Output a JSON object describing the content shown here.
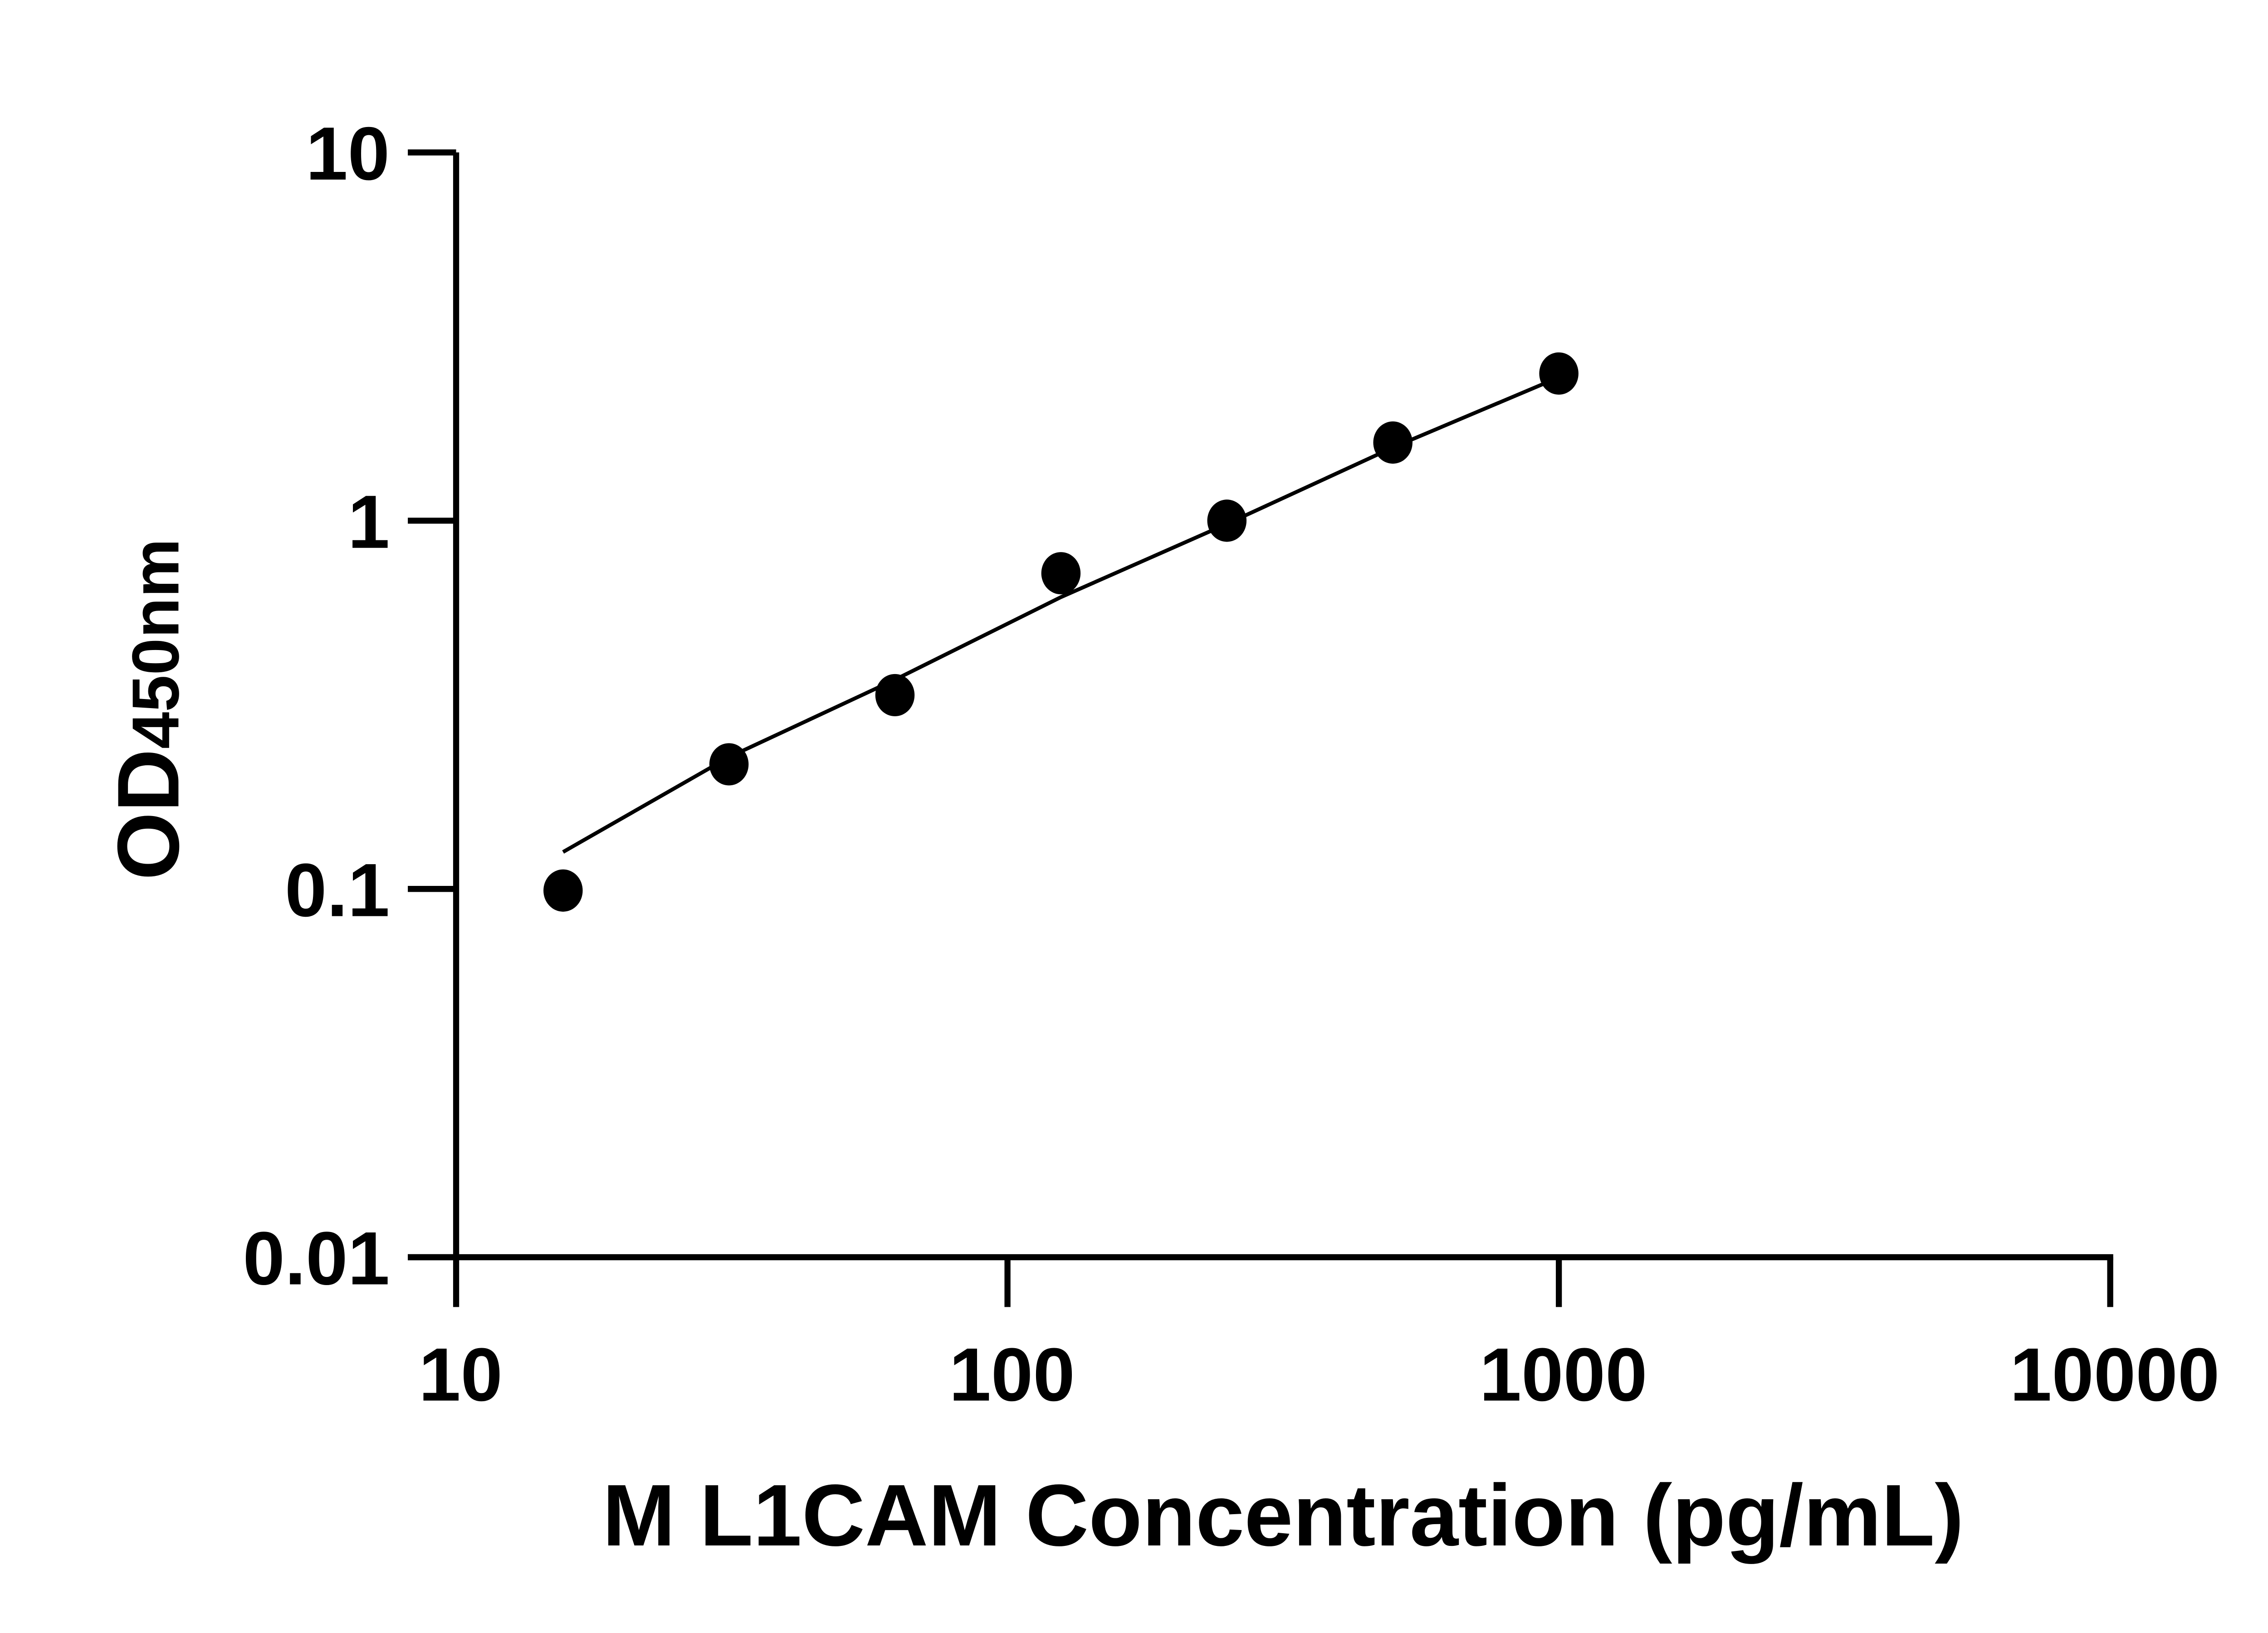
{
  "chart_data": {
    "type": "scatter",
    "title": "",
    "xlabel": "M L1CAM Concentration (pg/mL)",
    "ylabel_main": "OD",
    "ylabel_sub": "450nm",
    "x_scale": "log",
    "y_scale": "log",
    "xlim": [
      10,
      10000
    ],
    "ylim": [
      0.01,
      10
    ],
    "x_ticks": [
      "10",
      "100",
      "1000",
      "10000"
    ],
    "y_ticks": [
      "0.01",
      "0.1",
      "1",
      "10"
    ],
    "grid": false,
    "points": [
      {
        "x": 15.63,
        "y": 0.099
      },
      {
        "x": 31.25,
        "y": 0.218
      },
      {
        "x": 62.5,
        "y": 0.336
      },
      {
        "x": 125,
        "y": 0.72
      },
      {
        "x": 250,
        "y": 1.0
      },
      {
        "x": 500,
        "y": 1.63
      },
      {
        "x": 1000,
        "y": 2.51
      }
    ],
    "fit_curve": [
      {
        "x": 15.63,
        "y": 0.126
      },
      {
        "x": 31.25,
        "y": 0.228
      },
      {
        "x": 62.5,
        "y": 0.37
      },
      {
        "x": 125,
        "y": 0.62
      },
      {
        "x": 250,
        "y": 0.98
      },
      {
        "x": 500,
        "y": 1.58
      },
      {
        "x": 1000,
        "y": 2.45
      }
    ],
    "color": "#000000"
  }
}
